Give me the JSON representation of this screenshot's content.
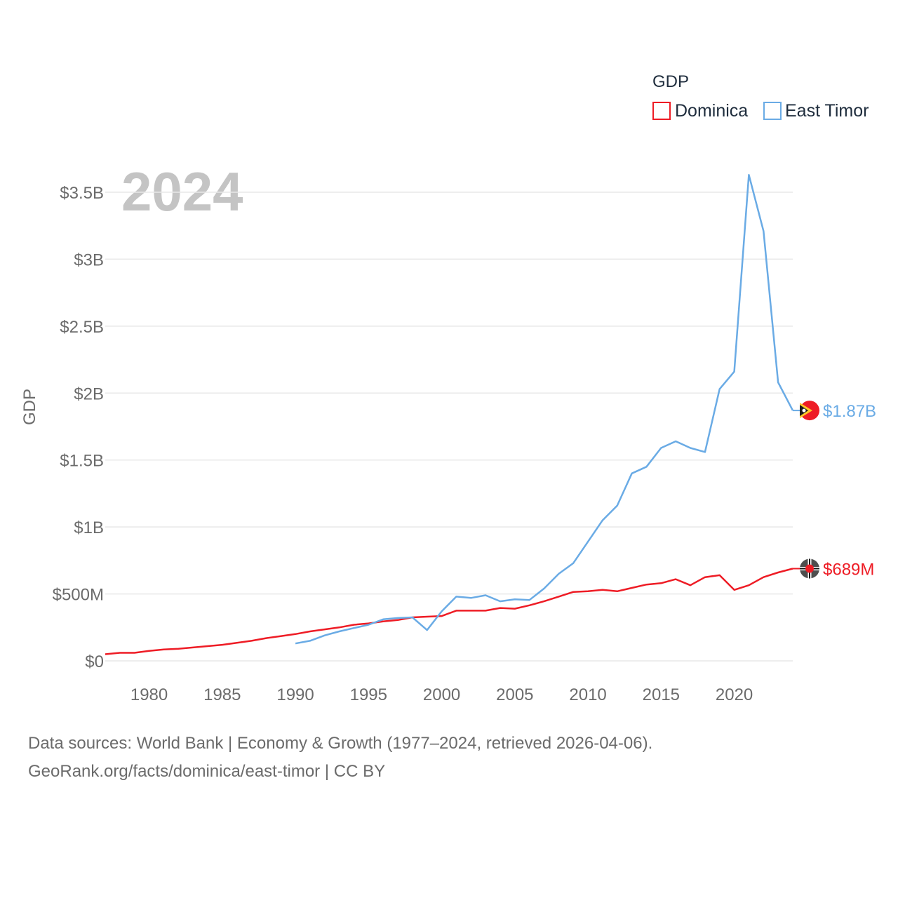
{
  "chart_data": {
    "type": "line",
    "ylabel": "GDP",
    "xlabel": "",
    "year_label": "2024",
    "legend": {
      "title": "GDP",
      "position": "top-right"
    },
    "xlim": [
      1977,
      2024
    ],
    "ylim": [
      0,
      3.5
    ],
    "y_unit": "billion USD",
    "x_ticks": [
      1980,
      1985,
      1990,
      1995,
      2000,
      2005,
      2010,
      2015,
      2020
    ],
    "y_ticks": [
      {
        "value": 0,
        "label": "$0"
      },
      {
        "value": 0.5,
        "label": "$500M"
      },
      {
        "value": 1,
        "label": "$1B"
      },
      {
        "value": 1.5,
        "label": "$1.5B"
      },
      {
        "value": 2,
        "label": "$2B"
      },
      {
        "value": 2.5,
        "label": "$2.5B"
      },
      {
        "value": 3,
        "label": "$3B"
      },
      {
        "value": 3.5,
        "label": "$3.5B"
      }
    ],
    "grid": true,
    "series": [
      {
        "name": "Dominica",
        "color": "#ee1c25",
        "end_label": "$689M",
        "flag_icon": "dominica-flag-icon",
        "x": [
          1977,
          1978,
          1979,
          1980,
          1981,
          1982,
          1983,
          1984,
          1985,
          1986,
          1987,
          1988,
          1989,
          1990,
          1991,
          1992,
          1993,
          1994,
          1995,
          1996,
          1997,
          1998,
          1999,
          2000,
          2001,
          2002,
          2003,
          2004,
          2005,
          2006,
          2007,
          2008,
          2009,
          2010,
          2011,
          2012,
          2013,
          2014,
          2015,
          2016,
          2017,
          2018,
          2019,
          2020,
          2021,
          2022,
          2023,
          2024
        ],
        "values": [
          0.05,
          0.06,
          0.06,
          0.075,
          0.085,
          0.09,
          0.1,
          0.11,
          0.12,
          0.135,
          0.15,
          0.17,
          0.185,
          0.2,
          0.22,
          0.235,
          0.25,
          0.27,
          0.28,
          0.295,
          0.305,
          0.325,
          0.33,
          0.335,
          0.375,
          0.375,
          0.375,
          0.395,
          0.39,
          0.415,
          0.445,
          0.48,
          0.515,
          0.52,
          0.53,
          0.52,
          0.545,
          0.57,
          0.58,
          0.61,
          0.565,
          0.625,
          0.64,
          0.53,
          0.565,
          0.625,
          0.66,
          0.689
        ]
      },
      {
        "name": "East Timor",
        "color": "#6aabe5",
        "end_label": "$1.87B",
        "flag_icon": "east-timor-flag-icon",
        "x": [
          1990,
          1991,
          1992,
          1993,
          1994,
          1995,
          1996,
          1997,
          1998,
          1999,
          2000,
          2001,
          2002,
          2003,
          2004,
          2005,
          2006,
          2007,
          2008,
          2009,
          2010,
          2011,
          2012,
          2013,
          2014,
          2015,
          2016,
          2017,
          2018,
          2019,
          2020,
          2021,
          2022,
          2023,
          2024
        ],
        "values": [
          0.13,
          0.15,
          0.19,
          0.22,
          0.245,
          0.27,
          0.31,
          0.32,
          0.325,
          0.23,
          0.37,
          0.48,
          0.47,
          0.49,
          0.445,
          0.46,
          0.455,
          0.54,
          0.65,
          0.73,
          0.89,
          1.05,
          1.16,
          1.4,
          1.45,
          1.59,
          1.64,
          1.59,
          1.56,
          2.03,
          2.16,
          3.63,
          3.21,
          2.08,
          1.87
        ]
      }
    ]
  },
  "footer": {
    "source_line": "Data sources: World Bank | Economy & Growth (1977–2024, retrieved 2026-04-06).",
    "credit_line": "GeoRank.org/facts/dominica/east-timor | CC BY"
  }
}
